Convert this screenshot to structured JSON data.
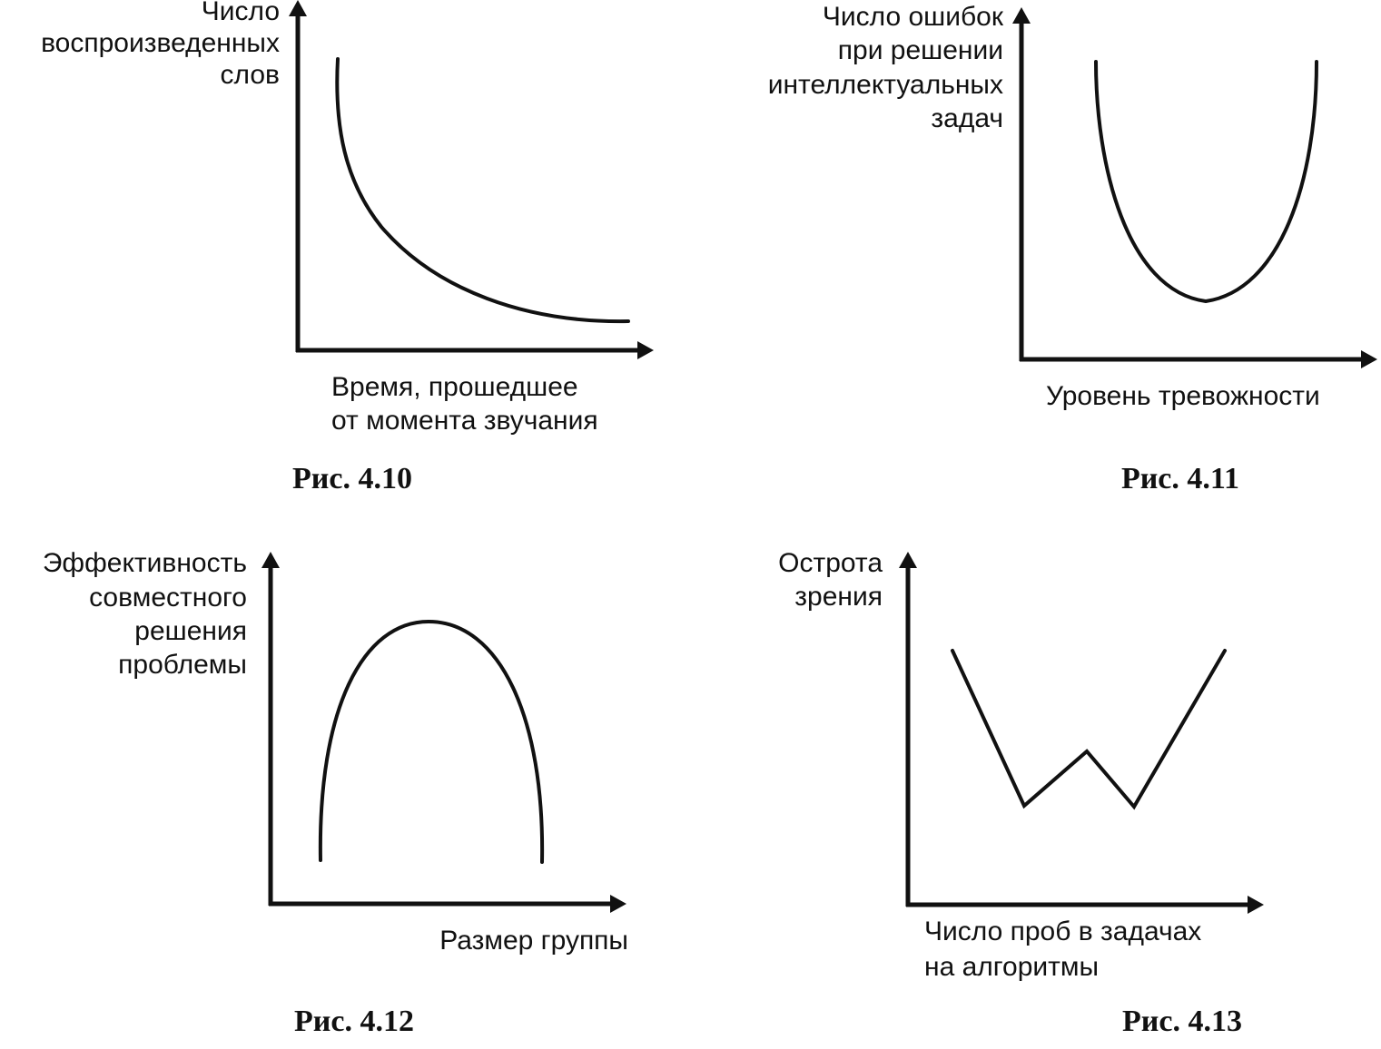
{
  "figures": [
    {
      "y_label": [
        "Число",
        "воспроизведенных",
        "слов"
      ],
      "x_label": [
        "Время, прошедшее",
        "от момента звучания"
      ],
      "caption": "Рис. 4.10"
    },
    {
      "y_label": [
        "Число ошибок",
        "при решении",
        "интеллектуальных",
        "задач"
      ],
      "x_label": [
        "Уровень тревожности"
      ],
      "caption": "Рис. 4.11"
    },
    {
      "y_label": [
        "Эффективность",
        "совместного",
        "решения",
        "проблемы"
      ],
      "x_label": [
        "Размер группы"
      ],
      "caption": "Рис. 4.12"
    },
    {
      "y_label": [
        "Острота",
        "зрения"
      ],
      "x_label": [
        "Число проб в задачах",
        "на алгоритмы"
      ],
      "caption": "Рис. 4.13"
    }
  ]
}
